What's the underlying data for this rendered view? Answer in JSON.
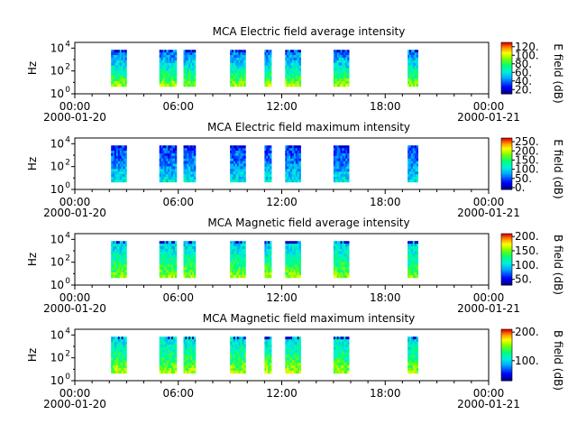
{
  "chart_data": [
    {
      "type": "heatmap",
      "title": "MCA  Electric field average intensity",
      "ylabel": "Hz",
      "colorbar_label": "E field (dB)",
      "colorbar_ticks": [
        "120.",
        "100.",
        "80.",
        "60.",
        "40.",
        "20."
      ],
      "colorbar_range": [
        10,
        130
      ],
      "y_ticks": [
        "10",
        "10",
        "10"
      ],
      "y_tick_exps": [
        "4",
        "2",
        "0"
      ],
      "x_ticks": [
        "00:00",
        "06:00",
        "12:00",
        "18:00",
        "00:00"
      ],
      "x_date_left": "2000-01-20",
      "x_date_right": "2000-01-21",
      "xlim_hours": [
        0,
        24
      ],
      "ylim_log10_hz": [
        0,
        4.5
      ],
      "data_intervals_hours": [
        [
          2.1,
          3.0
        ],
        [
          4.9,
          5.9
        ],
        [
          6.3,
          7.0
        ],
        [
          9.0,
          9.9
        ],
        [
          11.0,
          11.4
        ],
        [
          12.2,
          13.1
        ],
        [
          15.0,
          15.9
        ],
        [
          19.3,
          19.9
        ]
      ],
      "intensity_low_freq": 95,
      "intensity_high_freq": 40
    },
    {
      "type": "heatmap",
      "title": "MCA  Electric field maximum intensity",
      "ylabel": "Hz",
      "colorbar_label": "E field (dB)",
      "colorbar_ticks": [
        "250.",
        "200.",
        "150.",
        "100.",
        "50.",
        "0."
      ],
      "colorbar_range": [
        -10,
        270
      ],
      "y_ticks": [
        "10",
        "10",
        "10"
      ],
      "y_tick_exps": [
        "4",
        "2",
        "0"
      ],
      "x_ticks": [
        "00:00",
        "06:00",
        "12:00",
        "18:00",
        "00:00"
      ],
      "x_date_left": "2000-01-20",
      "x_date_right": "2000-01-21",
      "xlim_hours": [
        0,
        24
      ],
      "ylim_log10_hz": [
        0,
        4.5
      ],
      "data_intervals_hours": [
        [
          2.1,
          3.0
        ],
        [
          4.9,
          5.9
        ],
        [
          6.3,
          7.0
        ],
        [
          9.0,
          9.9
        ],
        [
          11.0,
          11.4
        ],
        [
          12.2,
          13.1
        ],
        [
          15.0,
          15.9
        ],
        [
          19.3,
          19.9
        ]
      ],
      "intensity_low_freq": 105,
      "intensity_high_freq": 40
    },
    {
      "type": "heatmap",
      "title": "MCA  Magnetic field average intensity",
      "ylabel": "Hz",
      "colorbar_label": "B field (dB)",
      "colorbar_ticks": [
        "200.",
        "150.",
        "100.",
        "50."
      ],
      "colorbar_range": [
        30,
        210
      ],
      "y_ticks": [
        "10",
        "10",
        "10"
      ],
      "y_tick_exps": [
        "4",
        "2",
        "0"
      ],
      "x_ticks": [
        "00:00",
        "06:00",
        "12:00",
        "18:00",
        "00:00"
      ],
      "x_date_left": "2000-01-20",
      "x_date_right": "2000-01-21",
      "xlim_hours": [
        0,
        24
      ],
      "ylim_log10_hz": [
        0,
        4.5
      ],
      "data_intervals_hours": [
        [
          2.1,
          3.0
        ],
        [
          4.9,
          5.9
        ],
        [
          6.3,
          7.0
        ],
        [
          9.0,
          9.9
        ],
        [
          11.0,
          11.4
        ],
        [
          12.2,
          13.1
        ],
        [
          15.0,
          15.9
        ],
        [
          19.3,
          19.9
        ]
      ],
      "intensity_low_freq": 155,
      "intensity_high_freq": 95
    },
    {
      "type": "heatmap",
      "title": "MCA  Magnetic field maximum intensity",
      "ylabel": "Hz",
      "colorbar_label": "B field (dB)",
      "colorbar_ticks": [
        "200.",
        "100."
      ],
      "colorbar_range": [
        30,
        210
      ],
      "y_ticks": [
        "10",
        "10",
        "10"
      ],
      "y_tick_exps": [
        "4",
        "2",
        "0"
      ],
      "x_ticks": [
        "00:00",
        "06:00",
        "12:00",
        "18:00",
        "00:00"
      ],
      "x_date_left": "2000-01-20",
      "x_date_right": "2000-01-21",
      "xlim_hours": [
        0,
        24
      ],
      "ylim_log10_hz": [
        0,
        4.5
      ],
      "data_intervals_hours": [
        [
          2.1,
          3.0
        ],
        [
          4.9,
          5.9
        ],
        [
          6.3,
          7.0
        ],
        [
          9.0,
          9.9
        ],
        [
          11.0,
          11.4
        ],
        [
          12.2,
          13.1
        ],
        [
          15.0,
          15.9
        ],
        [
          19.3,
          19.9
        ]
      ],
      "intensity_low_freq": 160,
      "intensity_high_freq": 100
    }
  ]
}
